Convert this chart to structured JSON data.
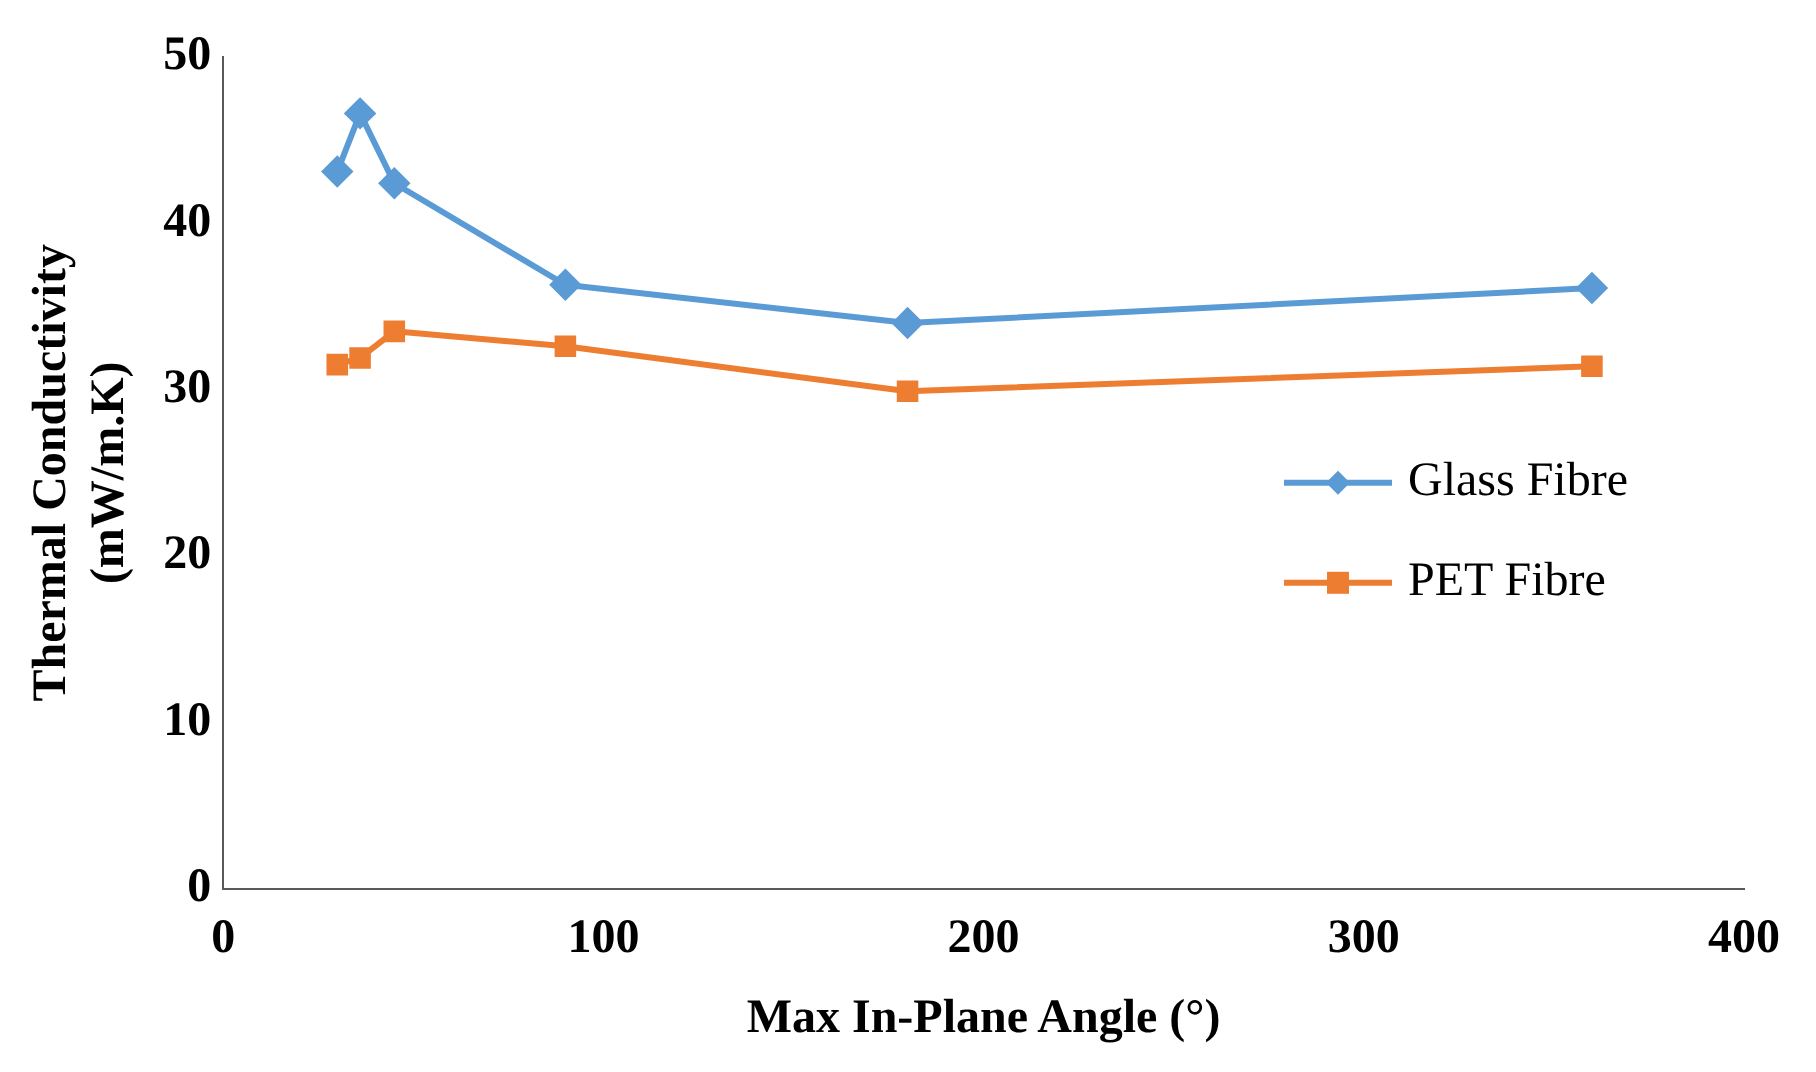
{
  "chart_data": {
    "type": "line",
    "xlabel": "Max In-Plane Angle (°)",
    "ylabel": "Thermal Conductivity\n(mW/m.K)",
    "x": [
      30,
      36,
      45,
      90,
      180,
      360
    ],
    "series": [
      {
        "name": "Glass Fibre",
        "color": "#5b9bd5",
        "marker": "diamond",
        "values": [
          43.1,
          46.6,
          42.4,
          36.3,
          34.0,
          36.1
        ]
      },
      {
        "name": "PET Fibre",
        "color": "#ed7d31",
        "marker": "square",
        "values": [
          31.5,
          31.9,
          33.5,
          32.6,
          29.9,
          31.4
        ]
      }
    ],
    "xlim": [
      0,
      400
    ],
    "xticks": [
      0,
      100,
      200,
      300,
      400
    ],
    "ylim": [
      0,
      50
    ],
    "yticks": [
      0,
      10,
      20,
      30,
      40,
      50
    ],
    "grid": false,
    "legend": "right",
    "line_style": "solid"
  }
}
